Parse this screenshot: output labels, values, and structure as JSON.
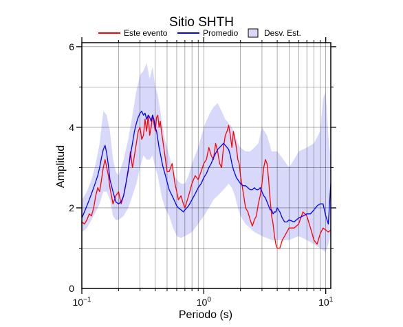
{
  "chart_data": {
    "type": "line",
    "title": "Sitio SHTH",
    "xlabel": "Periodo (s)",
    "ylabel": "Amplitud",
    "x_scale": "log",
    "xlim": [
      0.1,
      11
    ],
    "ylim": [
      0,
      6.1
    ],
    "grid": true,
    "legend_placement": "top",
    "x_ticks": [
      {
        "value": 0.1,
        "base": "10",
        "exp": "−1"
      },
      {
        "value": 1,
        "base": "10",
        "exp": "0"
      },
      {
        "value": 10,
        "base": "10",
        "exp": "1"
      }
    ],
    "y_ticks": [
      0,
      2,
      4,
      6
    ],
    "legend": [
      {
        "label": "Este evento",
        "kind": "line",
        "color": "#ff0000"
      },
      {
        "label": "Promedio",
        "kind": "line",
        "color": "#0000ff"
      },
      {
        "label": "Desv. Est.",
        "kind": "band",
        "color": "#d8d8fa"
      }
    ],
    "series": [
      {
        "name": "Este evento",
        "color": "#ff0000",
        "x": [
          0.1,
          0.105,
          0.11,
          0.115,
          0.12,
          0.125,
          0.13,
          0.135,
          0.14,
          0.145,
          0.15,
          0.155,
          0.16,
          0.165,
          0.17,
          0.18,
          0.19,
          0.2,
          0.21,
          0.22,
          0.23,
          0.24,
          0.25,
          0.26,
          0.27,
          0.28,
          0.29,
          0.3,
          0.31,
          0.32,
          0.33,
          0.34,
          0.35,
          0.36,
          0.37,
          0.38,
          0.39,
          0.4,
          0.41,
          0.42,
          0.43,
          0.44,
          0.45,
          0.46,
          0.48,
          0.5,
          0.52,
          0.55,
          0.58,
          0.6,
          0.62,
          0.65,
          0.68,
          0.7,
          0.75,
          0.8,
          0.85,
          0.9,
          0.95,
          1.0,
          1.05,
          1.1,
          1.15,
          1.2,
          1.25,
          1.3,
          1.35,
          1.4,
          1.45,
          1.5,
          1.55,
          1.6,
          1.65,
          1.7,
          1.75,
          1.8,
          1.85,
          1.9,
          1.95,
          2.0,
          2.1,
          2.2,
          2.3,
          2.4,
          2.5,
          2.6,
          2.7,
          2.8,
          2.9,
          3.0,
          3.1,
          3.2,
          3.3,
          3.4,
          3.5,
          3.6,
          3.7,
          3.8,
          3.9,
          4.0,
          4.2,
          4.4,
          4.6,
          4.8,
          5.0,
          5.5,
          6.0,
          6.5,
          7.0,
          7.5,
          8.0,
          8.5,
          9.0,
          9.5,
          10.0,
          10.5,
          11.0
        ],
        "values": [
          1.65,
          1.6,
          1.7,
          1.85,
          1.8,
          2.0,
          2.3,
          2.5,
          2.4,
          2.7,
          3.0,
          3.2,
          3.0,
          2.8,
          2.5,
          2.1,
          2.3,
          2.4,
          2.1,
          2.3,
          2.6,
          2.9,
          3.4,
          3.0,
          3.3,
          3.6,
          3.9,
          4.0,
          3.7,
          3.8,
          4.2,
          3.9,
          4.3,
          3.8,
          4.0,
          4.3,
          4.1,
          3.9,
          4.25,
          4.3,
          4.0,
          4.15,
          3.9,
          3.7,
          3.3,
          2.9,
          2.9,
          3.1,
          2.6,
          2.4,
          2.2,
          2.3,
          2.1,
          2.0,
          2.3,
          2.6,
          2.8,
          2.7,
          2.9,
          3.1,
          3.2,
          3.5,
          3.3,
          3.2,
          3.6,
          3.4,
          3.1,
          3.0,
          3.5,
          3.8,
          3.9,
          4.05,
          3.8,
          3.5,
          3.9,
          3.7,
          3.5,
          3.2,
          3.1,
          2.8,
          2.4,
          2.0,
          1.9,
          1.7,
          1.55,
          1.7,
          1.8,
          2.1,
          2.3,
          2.6,
          3.0,
          3.2,
          3.1,
          2.7,
          2.2,
          1.8,
          1.6,
          1.3,
          1.1,
          1.0,
          1.0,
          1.2,
          1.3,
          1.4,
          1.5,
          1.5,
          1.6,
          1.9,
          1.8,
          1.5,
          1.2,
          1.1,
          1.35,
          1.5,
          1.45,
          1.4,
          1.45
        ]
      },
      {
        "name": "Promedio",
        "color": "#0000ff",
        "x": [
          0.1,
          0.105,
          0.11,
          0.115,
          0.12,
          0.125,
          0.13,
          0.135,
          0.14,
          0.145,
          0.15,
          0.155,
          0.16,
          0.165,
          0.17,
          0.18,
          0.19,
          0.2,
          0.21,
          0.22,
          0.23,
          0.24,
          0.25,
          0.26,
          0.27,
          0.28,
          0.29,
          0.3,
          0.31,
          0.32,
          0.33,
          0.34,
          0.35,
          0.36,
          0.37,
          0.38,
          0.39,
          0.4,
          0.41,
          0.42,
          0.43,
          0.44,
          0.45,
          0.46,
          0.48,
          0.5,
          0.52,
          0.55,
          0.58,
          0.6,
          0.62,
          0.65,
          0.68,
          0.7,
          0.75,
          0.8,
          0.85,
          0.9,
          0.95,
          1.0,
          1.05,
          1.1,
          1.15,
          1.2,
          1.25,
          1.3,
          1.35,
          1.4,
          1.45,
          1.5,
          1.55,
          1.6,
          1.65,
          1.7,
          1.75,
          1.8,
          1.85,
          1.9,
          1.95,
          2.0,
          2.1,
          2.2,
          2.3,
          2.4,
          2.5,
          2.6,
          2.7,
          2.8,
          2.9,
          3.0,
          3.1,
          3.2,
          3.3,
          3.4,
          3.5,
          3.6,
          3.7,
          3.8,
          3.9,
          4.0,
          4.2,
          4.4,
          4.6,
          4.8,
          5.0,
          5.5,
          6.0,
          6.5,
          7.0,
          7.5,
          8.0,
          8.5,
          9.0,
          9.5,
          10.0,
          10.5,
          11.0
        ],
        "values": [
          1.75,
          1.9,
          2.05,
          2.2,
          2.35,
          2.5,
          2.65,
          2.8,
          3.0,
          3.25,
          3.45,
          3.55,
          3.35,
          3.05,
          2.7,
          2.4,
          2.15,
          2.1,
          2.15,
          2.3,
          2.6,
          2.95,
          3.3,
          3.6,
          3.9,
          4.1,
          4.25,
          4.35,
          4.4,
          4.3,
          4.35,
          4.2,
          4.3,
          4.25,
          4.15,
          4.3,
          4.2,
          4.0,
          3.9,
          3.7,
          3.5,
          3.35,
          3.2,
          3.05,
          2.85,
          2.65,
          2.45,
          2.3,
          2.15,
          2.05,
          2.0,
          1.95,
          1.9,
          1.95,
          2.05,
          2.2,
          2.35,
          2.5,
          2.6,
          2.75,
          2.85,
          3.0,
          3.1,
          3.25,
          3.35,
          3.45,
          3.5,
          3.55,
          3.6,
          3.55,
          3.5,
          3.45,
          3.3,
          3.1,
          2.95,
          2.85,
          2.75,
          2.7,
          2.65,
          2.6,
          2.55,
          2.55,
          2.5,
          2.45,
          2.45,
          2.5,
          2.45,
          2.45,
          2.5,
          2.4,
          2.3,
          2.25,
          2.15,
          2.05,
          1.95,
          1.95,
          1.85,
          1.9,
          1.9,
          2.0,
          1.9,
          1.75,
          1.65,
          1.65,
          1.7,
          1.65,
          1.75,
          1.8,
          1.85,
          1.85,
          1.95,
          2.05,
          2.1,
          2.1,
          1.8,
          1.6,
          2.6
        ]
      }
    ],
    "std_band": {
      "name": "Desv. Est.",
      "color": "#d8d8fa",
      "x": [
        0.1,
        0.11,
        0.12,
        0.13,
        0.14,
        0.15,
        0.16,
        0.17,
        0.18,
        0.19,
        0.2,
        0.22,
        0.24,
        0.26,
        0.28,
        0.3,
        0.32,
        0.34,
        0.36,
        0.38,
        0.4,
        0.42,
        0.45,
        0.48,
        0.52,
        0.56,
        0.6,
        0.65,
        0.7,
        0.75,
        0.8,
        0.9,
        1.0,
        1.1,
        1.2,
        1.3,
        1.4,
        1.5,
        1.6,
        1.7,
        1.8,
        1.9,
        2.0,
        2.2,
        2.4,
        2.6,
        2.8,
        3.0,
        3.3,
        3.6,
        4.0,
        4.5,
        5.0,
        5.5,
        6.0,
        7.0,
        8.0,
        9.0,
        9.5,
        10.0,
        10.5,
        11.0
      ],
      "upper": [
        2.2,
        2.4,
        2.7,
        3.1,
        3.6,
        4.4,
        4.3,
        3.9,
        3.2,
        2.9,
        2.8,
        3.2,
        3.7,
        4.3,
        4.9,
        5.3,
        5.4,
        5.6,
        5.2,
        5.5,
        5.0,
        4.8,
        4.2,
        3.7,
        3.3,
        2.9,
        2.7,
        2.6,
        2.6,
        2.8,
        3.1,
        3.5,
        4.0,
        4.3,
        4.5,
        4.6,
        4.4,
        4.2,
        4.1,
        4.0,
        3.8,
        3.6,
        3.5,
        3.4,
        3.4,
        3.5,
        3.6,
        4.0,
        3.8,
        3.4,
        3.4,
        3.2,
        3.0,
        3.2,
        3.4,
        3.5,
        3.6,
        3.9,
        4.7,
        4.9,
        3.8,
        3.2
      ],
      "lower": [
        1.4,
        1.5,
        1.7,
        1.9,
        2.1,
        2.4,
        2.4,
        2.2,
        1.8,
        1.7,
        1.7,
        1.8,
        2.0,
        2.3,
        2.6,
        3.0,
        3.3,
        3.2,
        3.2,
        3.3,
        3.0,
        2.8,
        2.3,
        2.0,
        1.8,
        1.5,
        1.3,
        1.25,
        1.3,
        1.35,
        1.4,
        1.6,
        1.8,
        2.0,
        2.2,
        2.3,
        2.4,
        2.5,
        2.6,
        2.5,
        2.3,
        2.0,
        1.8,
        1.6,
        1.5,
        1.4,
        1.35,
        1.3,
        1.25,
        1.2,
        1.2,
        1.2,
        1.2,
        1.25,
        1.3,
        1.2,
        1.1,
        1.0,
        0.95,
        0.9,
        1.1,
        1.3
      ]
    }
  }
}
